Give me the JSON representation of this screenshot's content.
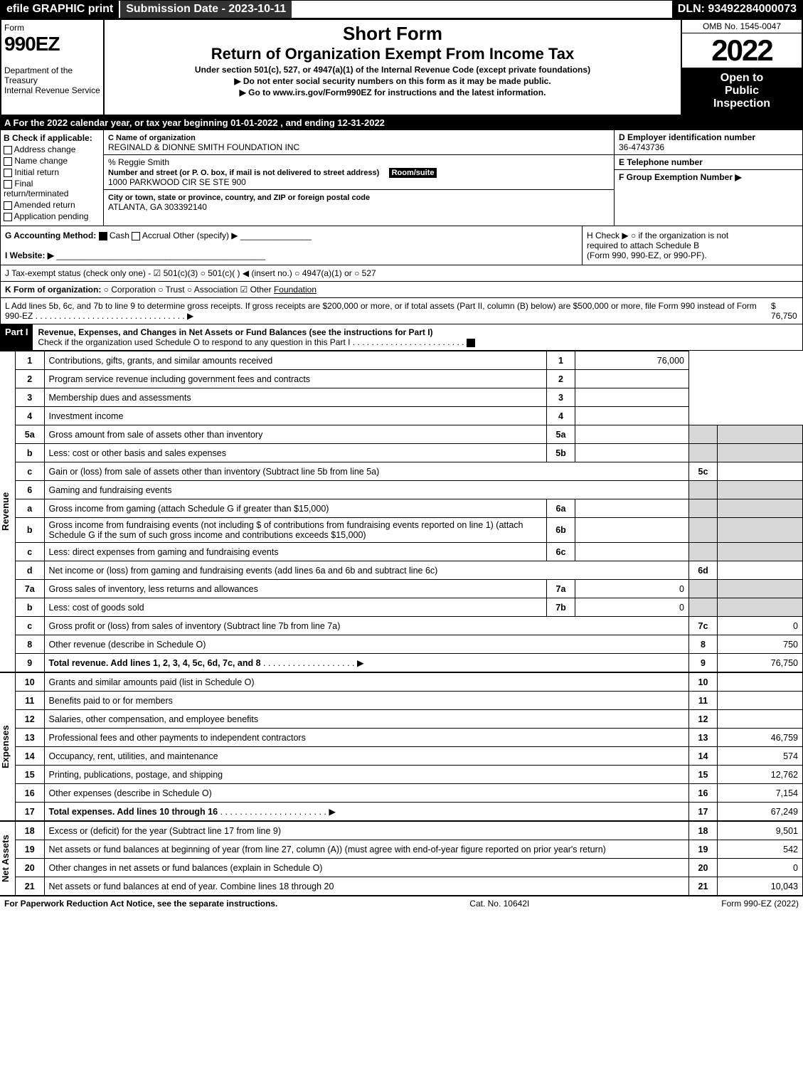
{
  "topbar": {
    "efile": "efile GRAPHIC print",
    "submission": "Submission Date - 2023-10-11",
    "dln": "DLN: 93492284000073"
  },
  "header": {
    "form_word": "Form",
    "form_no": "990EZ",
    "dept1": "Department of the Treasury",
    "dept2": "Internal Revenue Service",
    "title1": "Short Form",
    "title2": "Return of Organization Exempt From Income Tax",
    "sub1": "Under section 501(c), 527, or 4947(a)(1) of the Internal Revenue Code (except private foundations)",
    "sub2": "▶ Do not enter social security numbers on this form as it may be made public.",
    "sub3": "▶ Go to www.irs.gov/Form990EZ for instructions and the latest information.",
    "omb": "OMB No. 1545-0047",
    "year": "2022",
    "open1": "Open to",
    "open2": "Public",
    "open3": "Inspection"
  },
  "rowA": "A  For the 2022 calendar year, or tax year beginning 01-01-2022 , and ending 12-31-2022",
  "B": {
    "label": "B  Check if applicable:",
    "opts": [
      "Address change",
      "Name change",
      "Initial return",
      "Final return/terminated",
      "Amended return",
      "Application pending"
    ]
  },
  "C": {
    "name_lbl": "C Name of organization",
    "name": "REGINALD & DIONNE SMITH FOUNDATION INC",
    "care": "% Reggie Smith",
    "street_lbl": "Number and street (or P. O. box, if mail is not delivered to street address)",
    "room_lbl": "Room/suite",
    "street": "1000 PARKWOOD CIR SE STE 900",
    "city_lbl": "City or town, state or province, country, and ZIP or foreign postal code",
    "city": "ATLANTA, GA  303392140"
  },
  "D": {
    "lbl": "D Employer identification number",
    "val": "36-4743736"
  },
  "E": {
    "lbl": "E Telephone number",
    "val": ""
  },
  "F": {
    "lbl": "F Group Exemption Number  ▶",
    "val": ""
  },
  "G": {
    "lbl": "G Accounting Method:",
    "cash": "Cash",
    "accrual": "Accrual",
    "other": "Other (specify) ▶"
  },
  "H": {
    "line1": "H  Check ▶  ○  if the organization is not",
    "line2": "required to attach Schedule B",
    "line3": "(Form 990, 990-EZ, or 990-PF)."
  },
  "I": {
    "lbl": "I Website: ▶",
    "val": ""
  },
  "J": "J Tax-exempt status (check only one) - ☑ 501(c)(3) ○ 501(c)(  ) ◀ (insert no.) ○ 4947(a)(1) or ○ 527",
  "K": {
    "lbl": "K Form of organization:",
    "opts": "○ Corporation  ○ Trust  ○ Association  ☑ Other",
    "other": "Foundation"
  },
  "L": {
    "text": "L Add lines 5b, 6c, and 7b to line 9 to determine gross receipts. If gross receipts are $200,000 or more, or if total assets (Part II, column (B) below) are $500,000 or more, file Form 990 instead of Form 990-EZ . . . . . . . . . . . . . . . . . . . . . . . . . . . . . . . . ▶",
    "amount": "$ 76,750"
  },
  "part1": {
    "title": "Part I",
    "desc": "Revenue, Expenses, and Changes in Net Assets or Fund Balances (see the instructions for Part I)",
    "check": "Check if the organization used Schedule O to respond to any question in this Part I . . . . . . . . . . . . . . . . . . . . . . . ."
  },
  "sections": {
    "revenue": "Revenue",
    "expenses": "Expenses",
    "netassets": "Net Assets"
  },
  "lines": {
    "1": {
      "t": "Contributions, gifts, grants, and similar amounts received",
      "n": "1",
      "v": "76,000"
    },
    "2": {
      "t": "Program service revenue including government fees and contracts",
      "n": "2",
      "v": ""
    },
    "3": {
      "t": "Membership dues and assessments",
      "n": "3",
      "v": ""
    },
    "4": {
      "t": "Investment income",
      "n": "4",
      "v": ""
    },
    "5a": {
      "t": "Gross amount from sale of assets other than inventory",
      "sn": "5a",
      "sv": ""
    },
    "5b": {
      "t": "Less: cost or other basis and sales expenses",
      "sn": "5b",
      "sv": ""
    },
    "5c": {
      "t": "Gain or (loss) from sale of assets other than inventory (Subtract line 5b from line 5a)",
      "n": "5c",
      "v": ""
    },
    "6": {
      "t": "Gaming and fundraising events"
    },
    "6a": {
      "t": "Gross income from gaming (attach Schedule G if greater than $15,000)",
      "sn": "6a",
      "sv": ""
    },
    "6b": {
      "t": "Gross income from fundraising events (not including $                       of contributions from fundraising events reported on line 1) (attach Schedule G if the sum of such gross income and contributions exceeds $15,000)",
      "sn": "6b",
      "sv": ""
    },
    "6c": {
      "t": "Less: direct expenses from gaming and fundraising events",
      "sn": "6c",
      "sv": ""
    },
    "6d": {
      "t": "Net income or (loss) from gaming and fundraising events (add lines 6a and 6b and subtract line 6c)",
      "n": "6d",
      "v": ""
    },
    "7a": {
      "t": "Gross sales of inventory, less returns and allowances",
      "sn": "7a",
      "sv": "0"
    },
    "7b": {
      "t": "Less: cost of goods sold",
      "sn": "7b",
      "sv": "0"
    },
    "7c": {
      "t": "Gross profit or (loss) from sales of inventory (Subtract line 7b from line 7a)",
      "n": "7c",
      "v": "0"
    },
    "8": {
      "t": "Other revenue (describe in Schedule O)",
      "n": "8",
      "v": "750"
    },
    "9": {
      "t": "Total revenue. Add lines 1, 2, 3, 4, 5c, 6d, 7c, and 8",
      "n": "9",
      "v": "76,750"
    },
    "10": {
      "t": "Grants and similar amounts paid (list in Schedule O)",
      "n": "10",
      "v": ""
    },
    "11": {
      "t": "Benefits paid to or for members",
      "n": "11",
      "v": ""
    },
    "12": {
      "t": "Salaries, other compensation, and employee benefits",
      "n": "12",
      "v": ""
    },
    "13": {
      "t": "Professional fees and other payments to independent contractors",
      "n": "13",
      "v": "46,759"
    },
    "14": {
      "t": "Occupancy, rent, utilities, and maintenance",
      "n": "14",
      "v": "574"
    },
    "15": {
      "t": "Printing, publications, postage, and shipping",
      "n": "15",
      "v": "12,762"
    },
    "16": {
      "t": "Other expenses (describe in Schedule O)",
      "n": "16",
      "v": "7,154"
    },
    "17": {
      "t": "Total expenses. Add lines 10 through 16",
      "n": "17",
      "v": "67,249"
    },
    "18": {
      "t": "Excess or (deficit) for the year (Subtract line 17 from line 9)",
      "n": "18",
      "v": "9,501"
    },
    "19": {
      "t": "Net assets or fund balances at beginning of year (from line 27, column (A)) (must agree with end-of-year figure reported on prior year's return)",
      "n": "19",
      "v": "542"
    },
    "20": {
      "t": "Other changes in net assets or fund balances (explain in Schedule O)",
      "n": "20",
      "v": "0"
    },
    "21": {
      "t": "Net assets or fund balances at end of year. Combine lines 18 through 20",
      "n": "21",
      "v": "10,043"
    }
  },
  "footer": {
    "left": "For Paperwork Reduction Act Notice, see the separate instructions.",
    "mid": "Cat. No. 10642I",
    "right": "Form 990-EZ (2022)"
  }
}
